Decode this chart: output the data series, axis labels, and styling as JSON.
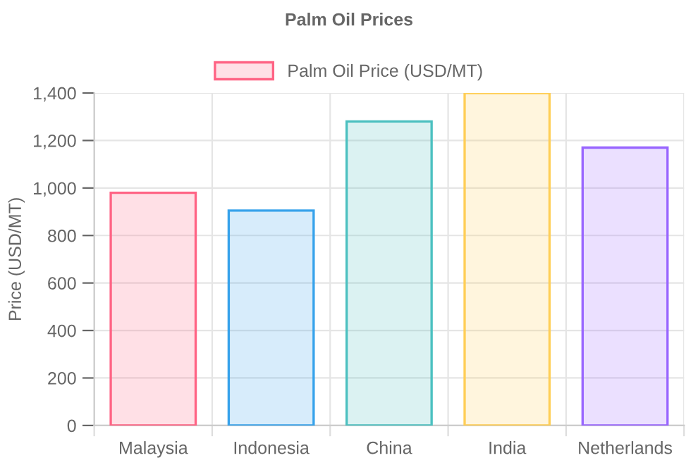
{
  "chart_data": {
    "type": "bar",
    "title": "Palm Oil Prices",
    "ylabel": "Price (USD/MT)",
    "categories": [
      "Malaysia",
      "Indonesia",
      "China",
      "India",
      "Netherlands"
    ],
    "series": [
      {
        "name": "Palm Oil Price (USD/MT)",
        "values": [
          980,
          905,
          1280,
          1400,
          1170
        ],
        "colors": [
          "#ff6384",
          "#36a2eb",
          "#4bc0c0",
          "#ffce56",
          "#9966ff"
        ]
      }
    ],
    "ylim": [
      0,
      1400
    ],
    "yticks": [
      0,
      {
        "value": 200,
        "label": "200"
      },
      {
        "value": 400,
        "label": "400"
      },
      {
        "value": 600,
        "label": "600"
      },
      {
        "value": 800,
        "label": "800"
      },
      {
        "value": 1000,
        "label": "1,000"
      },
      {
        "value": 1200,
        "label": "1,200"
      },
      {
        "value": 1400,
        "label": "1,400"
      }
    ],
    "grid": true,
    "legend": "top"
  }
}
